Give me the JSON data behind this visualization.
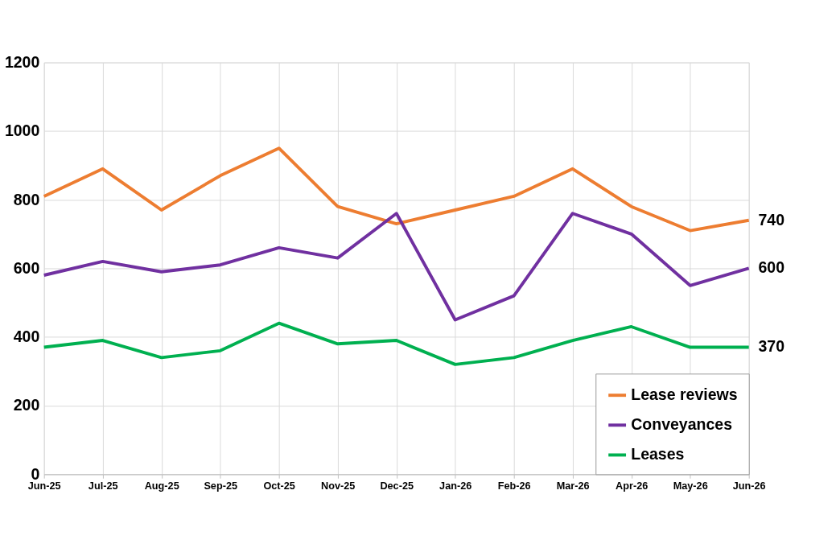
{
  "chart_data": {
    "type": "line",
    "categories": [
      "Jun-25",
      "Jul-25",
      "Aug-25",
      "Sep-25",
      "Oct-25",
      "Nov-25",
      "Dec-25",
      "Jan-26",
      "Feb-26",
      "Mar-26",
      "Apr-26",
      "May-26",
      "Jun-26"
    ],
    "series": [
      {
        "name": "Lease reviews",
        "color": "#ed7d31",
        "values": [
          810,
          890,
          770,
          870,
          950,
          780,
          730,
          770,
          810,
          890,
          780,
          710,
          740
        ],
        "value_labels": [
          null,
          null,
          null,
          null,
          null,
          null,
          null,
          null,
          null,
          null,
          null,
          null,
          "740"
        ]
      },
      {
        "name": "Conveyances",
        "color": "#7030a0",
        "values": [
          580,
          620,
          590,
          610,
          660,
          630,
          760,
          450,
          520,
          760,
          700,
          550,
          600
        ],
        "value_labels": [
          null,
          null,
          null,
          null,
          null,
          null,
          null,
          null,
          null,
          null,
          null,
          null,
          "600"
        ]
      },
      {
        "name": "Leases",
        "color": "#00b050",
        "values": [
          370,
          390,
          340,
          360,
          440,
          380,
          390,
          320,
          340,
          390,
          430,
          370,
          370
        ],
        "value_labels": [
          null,
          null,
          null,
          null,
          null,
          null,
          null,
          null,
          null,
          null,
          null,
          null,
          "370"
        ]
      }
    ],
    "ylim": [
      0,
      1200
    ],
    "yticks": [
      0,
      200,
      400,
      600,
      800,
      1000,
      1200
    ],
    "grid": true,
    "legend": "bottom right",
    "marker": "none",
    "line_style": "solid"
  }
}
